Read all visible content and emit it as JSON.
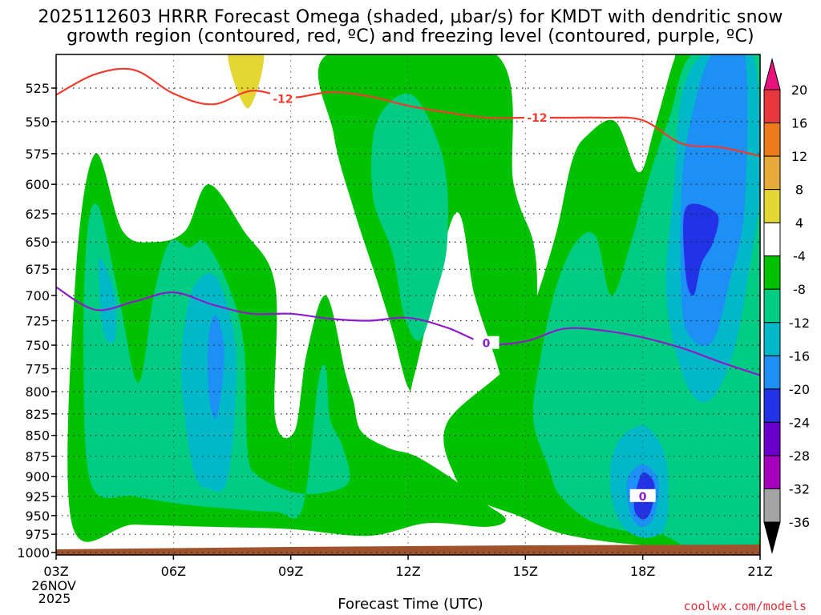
{
  "title_line1": "2025112603 HRRR Forecast Omega (shaded, μbar/s) for KMDT with dendritic snow",
  "title_line2": "growth region (contoured, red, ºC) and freezing level (contoured, purple, ºC)",
  "watermark": "coolwx.com/models",
  "chart_data": {
    "type": "heatmap",
    "title": "2025112603 HRRR Forecast Omega (shaded, μbar/s) for KMDT with dendritic snow growth region (contoured, red, ºC) and freezing level (contoured, purple, ºC)",
    "xlabel": "Forecast Time (UTC)",
    "x_ticks": [
      "03Z",
      "06Z",
      "09Z",
      "12Z",
      "15Z",
      "18Z",
      "21Z"
    ],
    "x_hours": [
      3,
      6,
      9,
      12,
      15,
      18,
      21
    ],
    "x_sub": [
      "26NOV",
      "2025"
    ],
    "y_ticks": [
      525,
      550,
      575,
      600,
      625,
      650,
      675,
      700,
      725,
      750,
      775,
      800,
      825,
      850,
      875,
      900,
      925,
      950,
      975,
      1000
    ],
    "ylim": [
      1000,
      500
    ],
    "grid": true,
    "colorbar": {
      "labels": [
        "20",
        "16",
        "12",
        "8",
        "4",
        "-4",
        "-8",
        "-12",
        "-16",
        "-20",
        "-24",
        "-28",
        "-32",
        "-36"
      ],
      "colors": [
        "#e8127d",
        "#e8373d",
        "#ee7a1e",
        "#e6a93a",
        "#e4d633",
        "#ffffff",
        "#00c200",
        "#00cc84",
        "#00b8c8",
        "#1e8ff5",
        "#2233e6",
        "#6a00cc",
        "#a600bf",
        "#a3a3a3",
        "#000000"
      ]
    },
    "contour_labels": {
      "dgz": [
        "-12",
        "-12"
      ],
      "freezing": [
        "0",
        "0"
      ]
    },
    "dgz_line_12C": [
      [
        3,
        530
      ],
      [
        4,
        515
      ],
      [
        5,
        512
      ],
      [
        6,
        529
      ],
      [
        7,
        537
      ],
      [
        8,
        527
      ],
      [
        9,
        532
      ],
      [
        10,
        528
      ],
      [
        11,
        531
      ],
      [
        12,
        538
      ],
      [
        13,
        543
      ],
      [
        14,
        547
      ],
      [
        15,
        547
      ],
      [
        16,
        547
      ],
      [
        17,
        547
      ],
      [
        18,
        549
      ],
      [
        19,
        567
      ],
      [
        20,
        570
      ],
      [
        21,
        577
      ]
    ],
    "freezing_line_0C": [
      [
        3,
        692
      ],
      [
        4,
        714
      ],
      [
        5,
        706
      ],
      [
        6,
        697
      ],
      [
        7,
        709
      ],
      [
        8,
        718
      ],
      [
        9,
        718
      ],
      [
        10,
        723
      ],
      [
        11,
        725
      ],
      [
        12,
        722
      ],
      [
        13,
        732
      ],
      [
        14,
        748
      ],
      [
        15,
        746
      ],
      [
        16,
        733
      ],
      [
        17,
        735
      ],
      [
        18,
        742
      ],
      [
        19,
        753
      ],
      [
        20,
        768
      ],
      [
        21,
        782
      ]
    ],
    "omega_regions": [
      {
        "color": "#00c200",
        "pts": [
          [
            3.4,
            960
          ],
          [
            3.5,
            680
          ],
          [
            4.0,
            575
          ],
          [
            4.7,
            640
          ],
          [
            5.5,
            650
          ],
          [
            6.3,
            640
          ],
          [
            6.9,
            600
          ],
          [
            7.8,
            640
          ],
          [
            8.6,
            690
          ],
          [
            8.6,
            830
          ],
          [
            9.1,
            845
          ],
          [
            9.4,
            760
          ],
          [
            9.9,
            700
          ],
          [
            10.4,
            780
          ],
          [
            10.6,
            810
          ],
          [
            10.8,
            845
          ],
          [
            11.5,
            865
          ],
          [
            12.2,
            875
          ],
          [
            13.2,
            905
          ],
          [
            14.0,
            935
          ],
          [
            14.5,
            955
          ],
          [
            14.0,
            965
          ],
          [
            12.5,
            960
          ],
          [
            11.0,
            977
          ],
          [
            9.0,
            968
          ],
          [
            7.0,
            965
          ],
          [
            5.0,
            962
          ]
        ]
      },
      {
        "color": "#00c200",
        "pts": [
          [
            10.0,
            500
          ],
          [
            14.2,
            500
          ],
          [
            14.7,
            600
          ],
          [
            15.2,
            650
          ],
          [
            15.3,
            700
          ],
          [
            15.2,
            750
          ],
          [
            15.6,
            790
          ],
          [
            15.8,
            850
          ],
          [
            14.8,
            835
          ],
          [
            14.2,
            760
          ],
          [
            13.7,
            700
          ],
          [
            13.2,
            625
          ],
          [
            12.2,
            775
          ],
          [
            12.0,
            795
          ],
          [
            11.6,
            735
          ],
          [
            11.2,
            685
          ],
          [
            10.6,
            620
          ],
          [
            10.1,
            560
          ]
        ]
      },
      {
        "color": "#00c200",
        "pts": [
          [
            14.7,
            765
          ],
          [
            15.3,
            700
          ],
          [
            15.8,
            640
          ],
          [
            16.2,
            580
          ],
          [
            16.6,
            560
          ],
          [
            17.3,
            550
          ],
          [
            17.9,
            590
          ],
          [
            18.3,
            555
          ],
          [
            18.8,
            505
          ],
          [
            19.0,
            500
          ],
          [
            21.0,
            500
          ],
          [
            21.0,
            985
          ],
          [
            18.2,
            990
          ],
          [
            16.0,
            975
          ],
          [
            14.8,
            950
          ],
          [
            13.8,
            930
          ],
          [
            13.2,
            900
          ],
          [
            13.0,
            835
          ]
        ]
      },
      {
        "color": "#00cc84",
        "pts": [
          [
            3.9,
            910
          ],
          [
            3.7,
            760
          ],
          [
            3.8,
            640
          ],
          [
            4.1,
            620
          ],
          [
            4.6,
            700
          ],
          [
            5.1,
            790
          ],
          [
            5.5,
            700
          ],
          [
            5.9,
            650
          ],
          [
            6.4,
            655
          ],
          [
            6.8,
            650
          ],
          [
            7.4,
            690
          ],
          [
            7.8,
            750
          ],
          [
            7.9,
            870
          ],
          [
            8.2,
            900
          ],
          [
            9.1,
            920
          ],
          [
            9.9,
            920
          ],
          [
            10.5,
            905
          ],
          [
            10.3,
            860
          ],
          [
            10.0,
            830
          ],
          [
            9.9,
            775
          ],
          [
            9.7,
            790
          ],
          [
            9.3,
            940
          ],
          [
            8.6,
            945
          ],
          [
            7.2,
            940
          ],
          [
            6.2,
            935
          ],
          [
            5.0,
            925
          ]
        ]
      },
      {
        "color": "#00cc84",
        "pts": [
          [
            11.2,
            550
          ],
          [
            12.1,
            530
          ],
          [
            12.9,
            580
          ],
          [
            13.0,
            650
          ],
          [
            12.7,
            700
          ],
          [
            12.3,
            745
          ],
          [
            11.9,
            720
          ],
          [
            11.6,
            660
          ],
          [
            11.1,
            610
          ]
        ]
      },
      {
        "color": "#00cc84",
        "pts": [
          [
            15.4,
            760
          ],
          [
            15.8,
            690
          ],
          [
            16.3,
            650
          ],
          [
            16.8,
            645
          ],
          [
            17.2,
            700
          ],
          [
            17.7,
            650
          ],
          [
            18.2,
            590
          ],
          [
            18.7,
            545
          ],
          [
            19.3,
            500
          ],
          [
            21.0,
            500
          ],
          [
            21.0,
            975
          ],
          [
            18.4,
            975
          ],
          [
            16.8,
            960
          ],
          [
            15.9,
            925
          ],
          [
            15.6,
            890
          ],
          [
            15.2,
            830
          ]
        ]
      },
      {
        "color": "#00b8c8",
        "pts": [
          [
            4.2,
            735
          ],
          [
            4.1,
            665
          ],
          [
            4.5,
            700
          ],
          [
            4.5,
            745
          ]
        ]
      },
      {
        "color": "#00b8c8",
        "pts": [
          [
            6.4,
            705
          ],
          [
            6.8,
            680
          ],
          [
            7.2,
            690
          ],
          [
            7.6,
            760
          ],
          [
            7.4,
            900
          ],
          [
            6.9,
            915
          ],
          [
            6.5,
            890
          ],
          [
            6.2,
            780
          ]
        ]
      },
      {
        "color": "#00b8c8",
        "pts": [
          [
            17.2,
            880
          ],
          [
            17.5,
            850
          ],
          [
            18.1,
            840
          ],
          [
            18.6,
            880
          ],
          [
            18.6,
            960
          ],
          [
            18.1,
            980
          ],
          [
            17.5,
            965
          ],
          [
            17.2,
            925
          ]
        ]
      },
      {
        "color": "#00b8c8",
        "pts": [
          [
            18.6,
            700
          ],
          [
            18.8,
            600
          ],
          [
            19.0,
            530
          ],
          [
            19.6,
            500
          ],
          [
            20.8,
            500
          ],
          [
            21.0,
            600
          ],
          [
            20.7,
            680
          ],
          [
            20.3,
            760
          ],
          [
            19.7,
            810
          ],
          [
            19.1,
            790
          ]
        ]
      },
      {
        "color": "#1e8ff5",
        "pts": [
          [
            6.9,
            740
          ],
          [
            7.1,
            720
          ],
          [
            7.3,
            760
          ],
          [
            7.1,
            830
          ],
          [
            6.9,
            800
          ]
        ]
      },
      {
        "color": "#1e8ff5",
        "pts": [
          [
            17.6,
            905
          ],
          [
            18.0,
            885
          ],
          [
            18.4,
            905
          ],
          [
            18.3,
            950
          ],
          [
            18.0,
            965
          ],
          [
            17.7,
            950
          ]
        ]
      },
      {
        "color": "#1e8ff5",
        "pts": [
          [
            19.0,
            710
          ],
          [
            19.0,
            600
          ],
          [
            19.3,
            540
          ],
          [
            19.8,
            500
          ],
          [
            20.6,
            500
          ],
          [
            20.6,
            620
          ],
          [
            20.2,
            690
          ],
          [
            19.8,
            745
          ],
          [
            19.3,
            745
          ]
        ]
      },
      {
        "color": "#2233e6",
        "pts": [
          [
            17.8,
            925
          ],
          [
            18.0,
            895
          ],
          [
            18.3,
            910
          ],
          [
            18.2,
            945
          ],
          [
            18.0,
            955
          ],
          [
            17.8,
            945
          ]
        ]
      },
      {
        "color": "#2233e6",
        "pts": [
          [
            19.1,
            680
          ],
          [
            19.1,
            620
          ],
          [
            19.9,
            625
          ],
          [
            19.8,
            650
          ],
          [
            19.5,
            670
          ],
          [
            19.3,
            700
          ]
        ]
      },
      {
        "color": "#e4d633",
        "pts": [
          [
            7.4,
            500
          ],
          [
            8.3,
            500
          ],
          [
            7.9,
            540
          ]
        ]
      }
    ],
    "surface_color": "#a0522d"
  }
}
